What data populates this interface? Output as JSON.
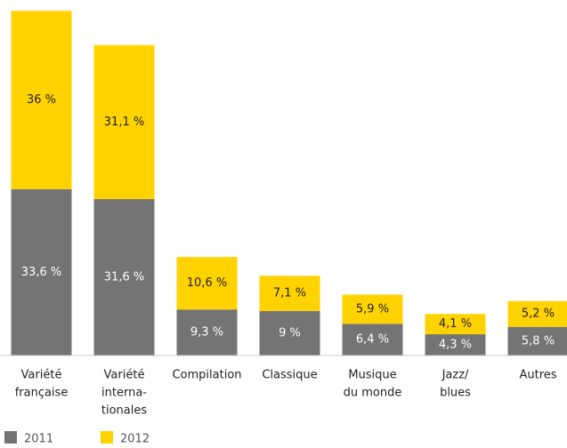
{
  "chart_data": {
    "type": "stacked-bar",
    "categories": [
      [
        "Variété",
        "française"
      ],
      [
        "Variété",
        "interna-",
        "tionales"
      ],
      [
        "Compilation"
      ],
      [
        "Classique"
      ],
      [
        "Musique",
        "du monde"
      ],
      [
        "Jazz/",
        "blues"
      ],
      [
        "Autres"
      ]
    ],
    "series": [
      {
        "name": "2011",
        "color": "#747474",
        "label_color": "#ffffff",
        "values": [
          33.6,
          31.6,
          9.3,
          9,
          6.4,
          4.3,
          5.8
        ],
        "value_labels": [
          "33,6 %",
          "31,6 %",
          "9,3 %",
          "9 %",
          "6,4 %",
          "4,3 %",
          "5,8 %"
        ]
      },
      {
        "name": "2012",
        "color": "#ffd200",
        "label_color": "#222222",
        "values": [
          36,
          31.1,
          10.6,
          7.1,
          5.9,
          4.1,
          5.2
        ],
        "value_labels": [
          "36 %",
          "31,1 %",
          "10,6 %",
          "7,1 %",
          "5,9 %",
          "4,1 %",
          "5,2 %"
        ]
      }
    ],
    "ylim": [
      0,
      70
    ]
  }
}
